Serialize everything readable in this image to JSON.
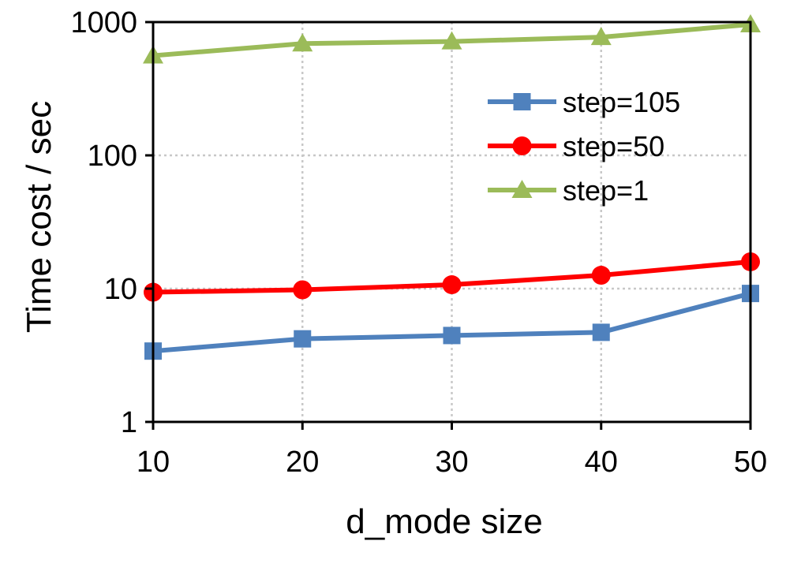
{
  "chart_data": {
    "type": "line",
    "title": "",
    "xlabel": "d_mode size",
    "ylabel": "Time cost / sec",
    "yscale": "log",
    "x": [
      10,
      20,
      30,
      40,
      50
    ],
    "xlim": [
      10,
      50
    ],
    "ylim": [
      1,
      1000
    ],
    "xticks": [
      "10",
      "20",
      "30",
      "40",
      "50"
    ],
    "yticks": [
      {
        "value": 1,
        "label": "1"
      },
      {
        "value": 10,
        "label": "10"
      },
      {
        "value": 100,
        "label": "100"
      },
      {
        "value": 1000,
        "label": "1000"
      }
    ],
    "grid": true,
    "legend_position": "top-right",
    "series": [
      {
        "name": "step=105",
        "color": "#4F81BD",
        "marker": "square",
        "values": [
          3.4,
          4.2,
          4.45,
          4.7,
          9.2
        ]
      },
      {
        "name": "step=50",
        "color": "#FF0000",
        "marker": "circle",
        "values": [
          9.4,
          9.8,
          10.7,
          12.6,
          15.9
        ]
      },
      {
        "name": "step=1",
        "color": "#9BBB59",
        "marker": "triangle",
        "values": [
          560,
          690,
          715,
          770,
          960
        ]
      }
    ]
  }
}
